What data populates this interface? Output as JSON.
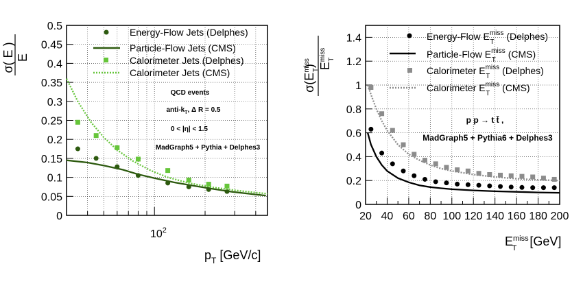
{
  "chart_data": [
    {
      "type": "scatter",
      "x_scale": "log",
      "xlim": [
        30,
        470
      ],
      "ylim": [
        0,
        0.5
      ],
      "yticks": [
        "0",
        "0.05",
        "0.1",
        "0.15",
        "0.2",
        "0.25",
        "0.3",
        "0.35",
        "0.4",
        "0.45",
        "0.5"
      ],
      "xtick_label_base": "10",
      "xtick_label_exp": "2",
      "xlabel": {
        "main": "p",
        "sub": "T",
        "rest": " [GeV/c]"
      },
      "ylabel": {
        "num": "σ( E )",
        "den": "E"
      },
      "grid": true,
      "legend_position": "top-right",
      "annotations": {
        "line1": "QCD events",
        "line2": "anti-k",
        "line2_sub": "T",
        "line2_rest": ", Δ R = 0.5",
        "line3": "0 < |η| < 1.5",
        "line4": "MadGraph5 + Pythia + Delphes3"
      },
      "series": [
        {
          "name": "Energy-Flow Jets (Delphes)",
          "style": "markers-circle",
          "color": "#2d5a0f",
          "x": [
            35,
            45,
            60,
            80,
            120,
            160,
            210,
            270
          ],
          "y": [
            0.175,
            0.15,
            0.128,
            0.105,
            0.085,
            0.075,
            0.068,
            0.063
          ]
        },
        {
          "name": "Particle-Flow Jets (CMS)",
          "style": "solid-line",
          "color": "#2d5a0f",
          "x": [
            30,
            40,
            50,
            65,
            80,
            100,
            130,
            170,
            220,
            290,
            380,
            460
          ],
          "y": [
            0.145,
            0.139,
            0.131,
            0.12,
            0.108,
            0.098,
            0.087,
            0.078,
            0.07,
            0.062,
            0.056,
            0.052
          ]
        },
        {
          "name": "Calorimeter Jets (Delphes)",
          "style": "markers-square",
          "color": "#66c53a",
          "x": [
            35,
            45,
            60,
            80,
            120,
            160,
            210,
            270
          ],
          "y": [
            0.245,
            0.21,
            0.178,
            0.148,
            0.118,
            0.093,
            0.082,
            0.077
          ]
        },
        {
          "name": "Calorimeter Jets (CMS)",
          "style": "dotted-line",
          "color": "#66c53a",
          "x": [
            30,
            35,
            42,
            50,
            60,
            75,
            95,
            120,
            160,
            220,
            300,
            400,
            470
          ],
          "y": [
            0.36,
            0.3,
            0.245,
            0.205,
            0.172,
            0.142,
            0.118,
            0.1,
            0.085,
            0.074,
            0.066,
            0.06,
            0.057
          ]
        }
      ]
    },
    {
      "type": "scatter",
      "x_scale": "linear",
      "xlim": [
        20,
        200
      ],
      "ylim": [
        0,
        1.5
      ],
      "xticks": [
        20,
        40,
        60,
        80,
        100,
        120,
        140,
        160,
        180,
        200
      ],
      "yticks": [
        "0",
        "0.2",
        "0.4",
        "0.6",
        "0.8",
        "1",
        "1.2",
        "1.4"
      ],
      "xlabel": {
        "main": "E",
        "sup": "miss",
        "sub": "T",
        "rest": " [GeV]"
      },
      "ylabel": {
        "main": "σ(E",
        "sup": "miss",
        "sub": "T",
        "mid": ")",
        "den_main": "E",
        "den_sup": "miss",
        "den_sub": "T"
      },
      "grid": true,
      "legend_position": "top-right",
      "annotations": {
        "line1": "p p → t t̄ ,",
        "line2": "MadGraph5 + Pythia6 + Delphes3"
      },
      "series": [
        {
          "name_main": "Energy-Flow E",
          "name_sup": "miss",
          "name_sub": "T",
          "name_rest": " (Delphes)",
          "style": "markers-circle",
          "color": "#000000",
          "x": [
            25,
            35,
            45,
            55,
            65,
            75,
            85,
            95,
            105,
            115,
            125,
            135,
            145,
            155,
            165,
            175,
            185,
            195
          ],
          "y": [
            0.63,
            0.43,
            0.34,
            0.28,
            0.24,
            0.21,
            0.19,
            0.18,
            0.17,
            0.165,
            0.16,
            0.155,
            0.15,
            0.145,
            0.142,
            0.14,
            0.14,
            0.14
          ]
        },
        {
          "name_main": "Particle-Flow E",
          "name_sup": "miss",
          "name_sub": "T",
          "name_rest": " (CMS)",
          "style": "solid-line",
          "color": "#000000",
          "x": [
            22,
            25,
            30,
            35,
            40,
            50,
            60,
            70,
            80,
            90,
            100,
            120,
            140,
            160,
            180,
            200
          ],
          "y": [
            0.6,
            0.5,
            0.4,
            0.33,
            0.28,
            0.22,
            0.185,
            0.16,
            0.145,
            0.135,
            0.127,
            0.117,
            0.11,
            0.105,
            0.1,
            0.097
          ]
        },
        {
          "name_main": "Calorimeter E",
          "name_sup": "miss",
          "name_sub": "T",
          "name_rest": " (Delphes)",
          "style": "markers-square",
          "color": "#8c8c8c",
          "x": [
            25,
            35,
            45,
            55,
            65,
            75,
            85,
            95,
            105,
            115,
            125,
            135,
            145,
            155,
            165,
            175,
            185,
            195
          ],
          "y": [
            0.98,
            0.76,
            0.62,
            0.5,
            0.42,
            0.37,
            0.34,
            0.31,
            0.29,
            0.28,
            0.26,
            0.25,
            0.245,
            0.24,
            0.235,
            0.23,
            0.22,
            0.21
          ]
        },
        {
          "name_main": "Calorimeter E",
          "name_sup": "miss",
          "name_sub": "T",
          "name_rest": " (CMS)",
          "style": "dotted-line",
          "color": "#8c8c8c",
          "x": [
            22,
            25,
            30,
            35,
            40,
            50,
            60,
            70,
            80,
            90,
            100,
            120,
            140,
            160,
            180,
            200
          ],
          "y": [
            1.0,
            0.92,
            0.8,
            0.7,
            0.62,
            0.5,
            0.42,
            0.37,
            0.33,
            0.3,
            0.28,
            0.25,
            0.23,
            0.215,
            0.205,
            0.2
          ]
        }
      ]
    }
  ]
}
